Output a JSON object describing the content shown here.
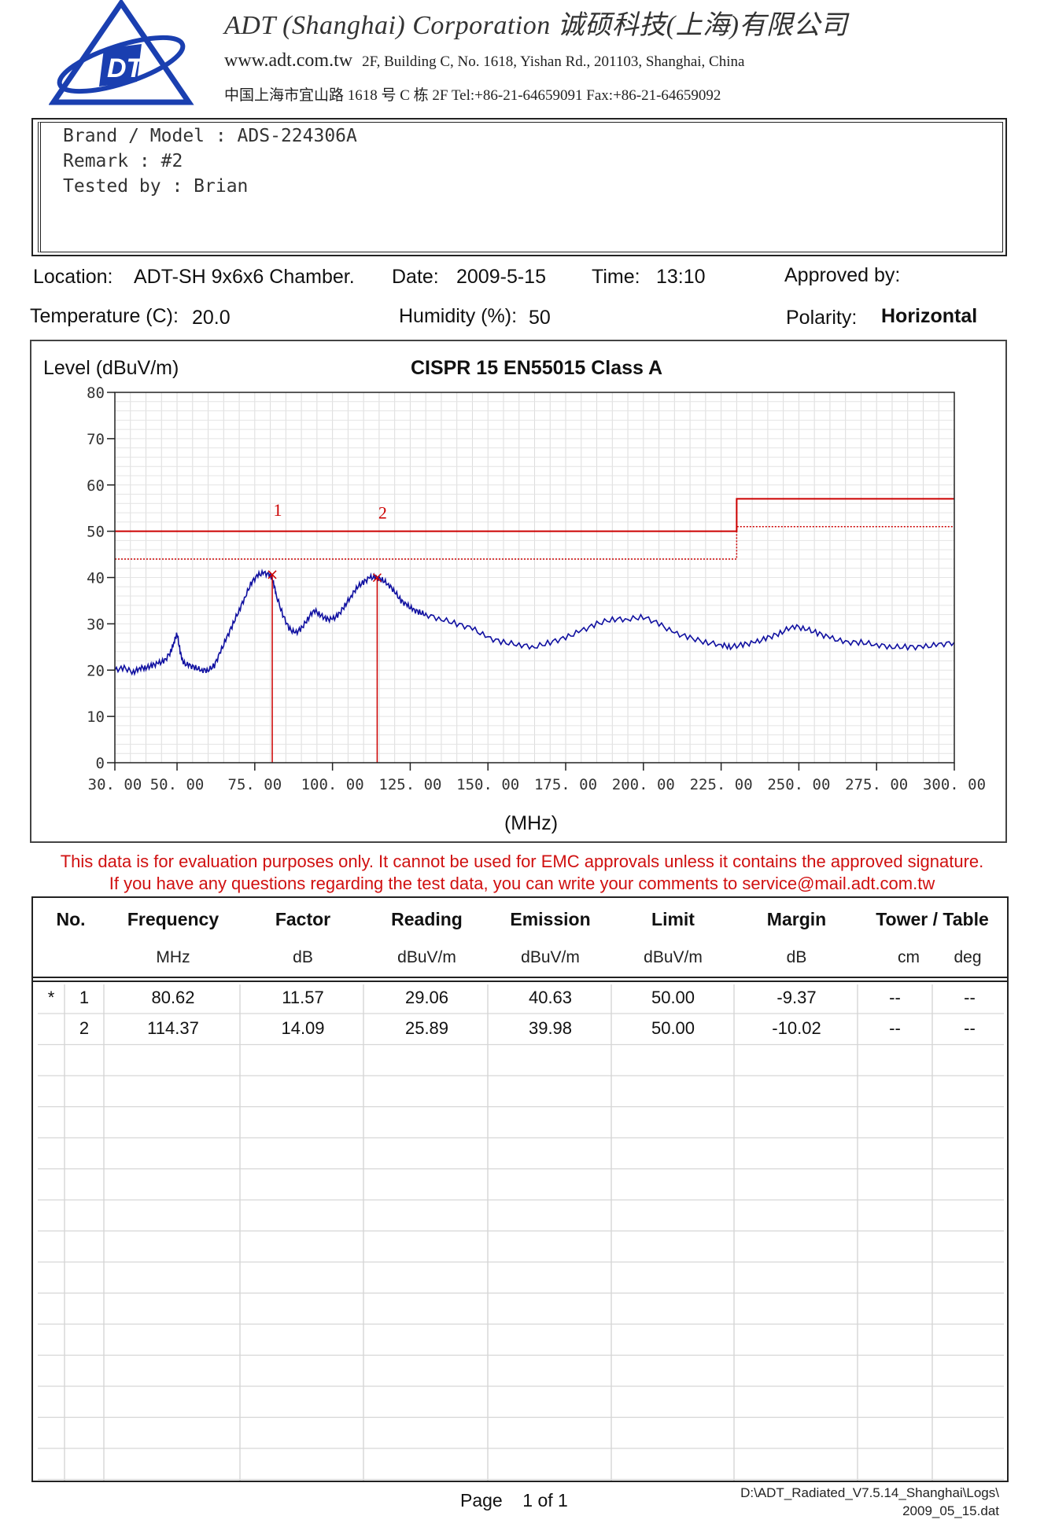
{
  "header": {
    "company_name": "ADT (Shanghai) Corporation 诚硕科技(上海)有限公司",
    "url": "www.adt.com.tw",
    "address_en": "2F, Building C, No. 1618, Yishan Rd., 201103, Shanghai, China",
    "address_cn": "中国上海市宜山路 1618 号 C 栋 2F Tel:+86-21-64659091 Fax:+86-21-64659092",
    "logo_text": "DT",
    "brand_color": "#1a3fb0"
  },
  "info": {
    "brand_model": "Brand / Model : ADS-224306A",
    "remark": "Remark : #2",
    "tested_by": "Tested by : Brian"
  },
  "meta": {
    "location_label": "Location:",
    "location_value": "ADT-SH 9x6x6 Chamber.",
    "date_label": "Date:",
    "date_value": "2009-5-15",
    "time_label": "Time:",
    "time_value": "13:10",
    "approved_label": "Approved by:",
    "temperature_label": "Temperature (C):",
    "temperature_value": "20.0",
    "humidity_label": "Humidity (%):",
    "humidity_value": "50",
    "polarity_label": "Polarity:",
    "polarity_value": "Horizontal"
  },
  "chart_data": {
    "type": "line",
    "title": "CISPR 15  EN55015  Class A",
    "ylabel": "Level (dBuV/m)",
    "xlabel": "(MHz)",
    "xlim": [
      30,
      300
    ],
    "ylim": [
      0,
      80
    ],
    "grid": true,
    "x_ticks": [
      "30. 00",
      "50. 00",
      "75. 00",
      "100. 00",
      "125. 00",
      "150. 00",
      "175. 00",
      "200. 00",
      "225. 00",
      "250. 00",
      "275. 00",
      "300. 00"
    ],
    "x_tick_values": [
      30,
      50,
      75,
      100,
      125,
      150,
      175,
      200,
      225,
      250,
      275,
      300
    ],
    "y_ticks": [
      "0",
      "10",
      "20",
      "30",
      "40",
      "50",
      "60",
      "70",
      "80"
    ],
    "y_tick_values": [
      0,
      10,
      20,
      30,
      40,
      50,
      60,
      70,
      80
    ],
    "limit_qp": {
      "x": [
        30,
        230,
        230,
        300
      ],
      "y": [
        50,
        50,
        57,
        57
      ],
      "color": "#cc0000"
    },
    "limit_margin": {
      "x": [
        30,
        230,
        230,
        300
      ],
      "y": [
        44,
        44,
        51,
        51
      ],
      "color": "#cc0000"
    },
    "trace": {
      "color": "#1010a0",
      "x": [
        30,
        33,
        36,
        38,
        40,
        42,
        44,
        46,
        48,
        49,
        50,
        51,
        52,
        54,
        56,
        58,
        60,
        62,
        64,
        66,
        68,
        70,
        72,
        74,
        76,
        78,
        80,
        81,
        82,
        84,
        86,
        88,
        90,
        92,
        94,
        96,
        98,
        100,
        102,
        104,
        106,
        108,
        110,
        112,
        114,
        116,
        118,
        120,
        122,
        124,
        126,
        128,
        130,
        135,
        140,
        145,
        150,
        155,
        160,
        165,
        170,
        175,
        180,
        185,
        190,
        195,
        200,
        205,
        210,
        215,
        220,
        225,
        228,
        232,
        236,
        240,
        244,
        248,
        252,
        256,
        260,
        265,
        270,
        275,
        280,
        285,
        290,
        295,
        300
      ],
      "y": [
        20,
        20.5,
        19.5,
        20.5,
        20.5,
        21,
        21.5,
        22,
        24,
        26,
        28,
        24,
        21.5,
        21,
        20.5,
        20,
        20,
        21,
        24,
        27,
        30,
        33,
        36,
        39,
        40.5,
        41,
        40.5,
        39,
        36,
        32,
        29,
        28,
        29,
        31,
        33,
        32,
        31,
        31,
        32,
        34,
        36,
        38,
        39,
        40,
        40,
        39.5,
        38.5,
        37,
        35,
        34,
        33,
        32.5,
        32,
        31,
        30,
        29,
        27,
        26,
        25.5,
        25,
        26,
        27,
        28.5,
        30,
        31,
        31,
        31.5,
        30,
        28,
        27,
        26,
        25.5,
        25,
        25.5,
        26,
        27,
        28,
        29.5,
        29,
        28,
        27,
        26,
        26,
        25.5,
        25,
        25,
        25,
        25.5,
        26
      ]
    },
    "peaks": [
      {
        "label": "1",
        "x": 80.62,
        "y": 40.63
      },
      {
        "label": "2",
        "x": 114.37,
        "y": 39.98
      }
    ]
  },
  "disclaimer": {
    "line1": "This data is for evaluation purposes only.  It cannot be used for EMC approvals unless it contains the approved signature.",
    "line2": "If you have any questions regarding the test data, you can write your comments to  service@mail.adt.com.tw"
  },
  "table": {
    "headers": [
      "No.",
      "Frequency",
      "Factor",
      "Reading",
      "Emission",
      "Limit",
      "Margin",
      "Tower / Table"
    ],
    "units": [
      "MHz",
      "dB",
      "dBuV/m",
      "dBuV/m",
      "dBuV/m",
      "dB",
      "cm",
      "deg"
    ],
    "rows": [
      {
        "mark": "*",
        "no": "1",
        "freq": "80.62",
        "factor": "11.57",
        "reading": "29.06",
        "emission": "40.63",
        "limit": "50.00",
        "margin": "-9.37",
        "tower": "--",
        "table": "--"
      },
      {
        "mark": "",
        "no": "2",
        "freq": "114.37",
        "factor": "14.09",
        "reading": "25.89",
        "emission": "39.98",
        "limit": "50.00",
        "margin": "-10.02",
        "tower": "--",
        "table": "--"
      }
    ]
  },
  "footer": {
    "page_label": "Page",
    "page_value": "1 of 1",
    "path_line1": "D:\\ADT_Radiated_V7.5.14_Shanghai\\Logs\\",
    "path_line2": "2009_05_15.dat"
  }
}
